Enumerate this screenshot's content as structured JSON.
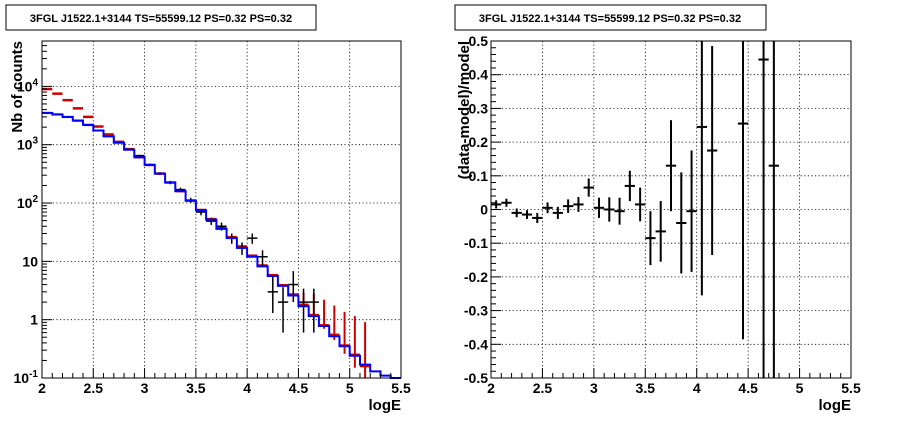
{
  "chart_data": [
    {
      "type": "line",
      "title": "3FGL J1522.1+3144 TS=55599.12 PS=0.32 PS=0.32",
      "xlabel": "logE",
      "ylabel": "Nb of counts",
      "xlim": [
        2,
        5.5
      ],
      "ylim": [
        0.1,
        60000
      ],
      "yscale": "log",
      "grid": true,
      "x_ticks": [
        "2",
        "2.5",
        "3",
        "3.5",
        "4",
        "4.5",
        "5",
        "5.5"
      ],
      "y_ticks": [
        "10^-1",
        "1",
        "10",
        "10^2",
        "10^3",
        "10^4"
      ],
      "bin_edges": [
        2.0,
        2.1,
        2.2,
        2.3,
        2.4,
        2.5,
        2.6,
        2.7,
        2.8,
        2.9,
        3.0,
        3.1,
        3.2,
        3.3,
        3.4,
        3.5,
        3.6,
        3.7,
        3.8,
        3.9,
        4.0,
        4.1,
        4.2,
        4.3,
        4.4,
        4.5,
        4.6,
        4.7,
        4.8,
        4.9,
        5.0,
        5.1,
        5.2,
        5.3,
        5.4,
        5.5
      ],
      "series": [
        {
          "type": "step",
          "color": "#0000ff",
          "values": [
            3500,
            3300,
            3000,
            2600,
            2200,
            1750,
            1400,
            1080,
            820,
            610,
            450,
            320,
            225,
            160,
            110,
            75,
            52,
            36,
            25,
            17,
            12,
            8.2,
            5.6,
            3.8,
            2.6,
            1.7,
            1.15,
            0.78,
            0.52,
            0.35,
            0.24,
            0.17,
            0.13,
            0.11,
            0.1
          ]
        },
        {
          "type": "errorbar",
          "color": "#cc0000",
          "x": [
            2.05,
            2.15,
            2.25,
            2.35,
            2.45,
            2.55,
            2.65,
            2.75,
            2.85,
            2.95,
            3.05,
            3.15,
            3.25,
            3.35,
            3.45,
            3.55,
            3.65,
            3.75,
            3.85,
            3.95,
            4.05,
            4.15,
            4.25,
            4.35,
            4.45,
            4.55,
            4.65,
            4.75,
            4.85,
            4.95,
            5.05,
            5.15
          ],
          "y": [
            9000,
            7500,
            5800,
            4200,
            3000,
            2050,
            1500,
            1120,
            840,
            610,
            450,
            320,
            225,
            160,
            110,
            76,
            53,
            37,
            26,
            18,
            12.5,
            8.5,
            5.8,
            3.9,
            2.7,
            1.8,
            1.2,
            0.8,
            0.55,
            0.36,
            0.25,
            0.16
          ],
          "err_low": [
            0,
            0,
            0,
            0,
            0,
            0,
            0,
            0,
            0,
            0,
            0,
            0,
            0,
            0,
            0,
            0,
            0,
            0,
            0,
            0,
            0,
            0,
            0,
            0,
            0,
            0,
            0.1,
            0.1,
            0.1,
            0.1,
            0.1,
            0.1
          ],
          "err_high": [
            0,
            0,
            0,
            0,
            0,
            0,
            0,
            0,
            0,
            0,
            0,
            0,
            0,
            0,
            0,
            0,
            0,
            0,
            0,
            0,
            0,
            0,
            0,
            0,
            0,
            1.1,
            1.6,
            1.4,
            1.2,
            1.0,
            0.9,
            0.75
          ]
        },
        {
          "type": "errorbar",
          "color": "#000000",
          "x": [
            2.05,
            2.15,
            2.25,
            2.35,
            2.45,
            2.55,
            2.65,
            2.75,
            2.85,
            2.95,
            3.05,
            3.15,
            3.25,
            3.35,
            3.45,
            3.55,
            3.65,
            3.75,
            3.85,
            3.95,
            4.05,
            4.15,
            4.25,
            4.35,
            4.45,
            4.55,
            4.65
          ],
          "y": [
            3550,
            3350,
            2950,
            2550,
            2150,
            1760,
            1380,
            1090,
            830,
            650,
            450,
            320,
            225,
            170,
            112,
            70,
            49,
            40,
            25,
            17,
            25,
            12,
            3,
            2,
            4,
            2,
            2
          ],
          "err_low": [
            60,
            58,
            54,
            50,
            46,
            42,
            37,
            33,
            29,
            25,
            21,
            18,
            15,
            13,
            11,
            8.4,
            7,
            6.3,
            5,
            4.1,
            5,
            3.5,
            1.7,
            1.4,
            2,
            1.4,
            1.4
          ],
          "err_high": [
            60,
            58,
            54,
            50,
            46,
            42,
            37,
            33,
            29,
            25,
            21,
            18,
            15,
            13,
            11,
            8.4,
            7,
            6.3,
            5,
            4.1,
            5,
            3.5,
            2.5,
            1.6,
            2.8,
            1.4,
            1.4
          ],
          "x_half_width": 0.05
        }
      ]
    },
    {
      "type": "scatter",
      "title": "3FGL J1522.1+3144 TS=55599.12 PS=0.32 PS=0.32",
      "xlabel": "logE",
      "ylabel": "(data-model)/model",
      "xlim": [
        2,
        5.5
      ],
      "ylim": [
        -0.5,
        0.5
      ],
      "grid": true,
      "x_ticks": [
        "2",
        "2.5",
        "3",
        "3.5",
        "4",
        "4.5",
        "5",
        "5.5"
      ],
      "y_ticks": [
        "-0.5",
        "-0.4",
        "-0.3",
        "-0.2",
        "-0.1",
        "0",
        "0.1",
        "0.2",
        "0.3",
        "0.4",
        "0.5"
      ],
      "series": [
        {
          "type": "errorbar",
          "color": "#000000",
          "x": [
            2.05,
            2.15,
            2.25,
            2.35,
            2.45,
            2.55,
            2.65,
            2.75,
            2.85,
            2.95,
            3.05,
            3.15,
            3.25,
            3.35,
            3.45,
            3.55,
            3.65,
            3.75,
            3.85,
            3.95,
            4.05,
            4.15,
            4.45,
            4.65,
            4.75
          ],
          "y": [
            0.015,
            0.02,
            -0.01,
            -0.015,
            -0.025,
            0.005,
            -0.01,
            0.01,
            0.015,
            0.065,
            0.005,
            0.0,
            -0.005,
            0.07,
            0.015,
            -0.085,
            -0.065,
            0.13,
            -0.04,
            -0.005,
            0.245,
            0.175,
            0.255,
            0.445,
            0.13
          ],
          "err": [
            0.012,
            0.012,
            0.013,
            0.013,
            0.015,
            0.016,
            0.018,
            0.02,
            0.022,
            0.027,
            0.03,
            0.036,
            0.04,
            0.045,
            0.05,
            0.08,
            0.09,
            0.135,
            0.15,
            0.18,
            0.5,
            0.31,
            0.64,
            1.0,
            1.0
          ],
          "x_half_width": 0.05
        }
      ]
    }
  ]
}
